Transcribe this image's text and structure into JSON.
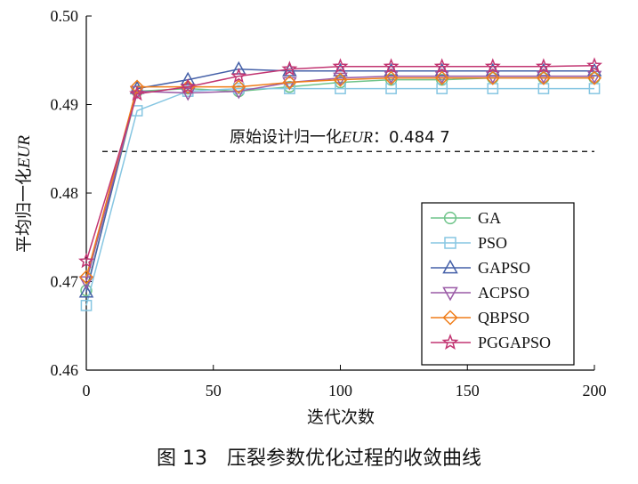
{
  "chart_data": {
    "type": "line",
    "xlabel": "迭代次数",
    "ylabel_prefix": "平均归一化",
    "ylabel_italic": "EUR",
    "xlim": [
      0,
      200
    ],
    "ylim": [
      0.46,
      0.5
    ],
    "xticks": [
      "0",
      "50",
      "100",
      "150",
      "200"
    ],
    "yticks": [
      "0.46",
      "0.47",
      "0.48",
      "0.49",
      "0.50"
    ],
    "grid": false,
    "legend_position": "lower-right",
    "x": [
      0,
      20,
      40,
      60,
      80,
      100,
      120,
      140,
      160,
      180,
      200
    ],
    "reference_line": {
      "value": 0.4847,
      "label_prefix": "原始设计归一化",
      "label_italic": "EUR",
      "label_suffix": "：0.484 7"
    },
    "series": [
      {
        "name": "GA",
        "color": "#6fc48a",
        "marker": "circle",
        "values": [
          0.469,
          0.4915,
          0.4918,
          0.4915,
          0.492,
          0.4925,
          0.4928,
          0.4928,
          0.493,
          0.493,
          0.493
        ]
      },
      {
        "name": "PSO",
        "color": "#86c6e2",
        "marker": "square",
        "values": [
          0.4673,
          0.4893,
          0.4915,
          0.4918,
          0.4918,
          0.4918,
          0.4918,
          0.4918,
          0.4918,
          0.4918,
          0.4918
        ]
      },
      {
        "name": "GAPSO",
        "color": "#4560a8",
        "marker": "triangle-up",
        "values": [
          0.4688,
          0.4918,
          0.4928,
          0.494,
          0.4938,
          0.4938,
          0.4938,
          0.4938,
          0.4938,
          0.4938,
          0.4938
        ]
      },
      {
        "name": "ACPSO",
        "color": "#9a5aa6",
        "marker": "triangle-down",
        "values": [
          0.47,
          0.4915,
          0.4913,
          0.4915,
          0.4925,
          0.493,
          0.4932,
          0.4932,
          0.4932,
          0.4932,
          0.4932
        ]
      },
      {
        "name": "QBPSO",
        "color": "#ef7d1a",
        "marker": "diamond",
        "values": [
          0.4705,
          0.492,
          0.492,
          0.492,
          0.4925,
          0.4928,
          0.493,
          0.493,
          0.493,
          0.493,
          0.493
        ]
      },
      {
        "name": "PGGAPSO",
        "color": "#c23572",
        "marker": "star",
        "values": [
          0.4723,
          0.4912,
          0.492,
          0.4932,
          0.494,
          0.4943,
          0.4943,
          0.4943,
          0.4943,
          0.4943,
          0.4944
        ]
      }
    ]
  },
  "caption": {
    "figure_number": "图 13",
    "title": "压裂参数优化过程的收敛曲线"
  }
}
